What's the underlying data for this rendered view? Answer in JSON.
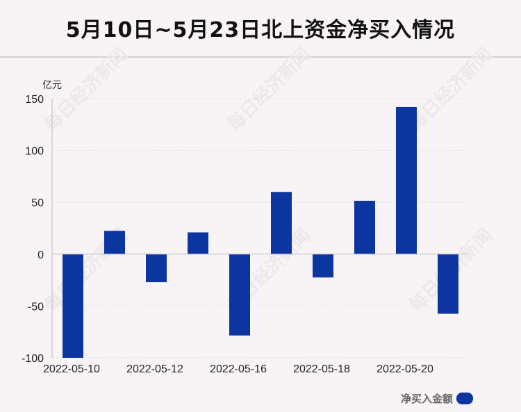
{
  "header": {
    "title": "5月10日~5月23日北上资金净买入情况"
  },
  "watermark": "每日经济新闻",
  "chart_data": {
    "type": "bar",
    "unit_label": "亿元",
    "categories": [
      "2022-05-10",
      "2022-05-11",
      "2022-05-12",
      "2022-05-13",
      "2022-05-16",
      "2022-05-17",
      "2022-05-18",
      "2022-05-19",
      "2022-05-20",
      "2022-05-23"
    ],
    "x_tick_labels": [
      "2022-05-10",
      "2022-05-12",
      "2022-05-16",
      "2022-05-18",
      "2022-05-20"
    ],
    "x_tick_indices": [
      0,
      2,
      4,
      6,
      8
    ],
    "series": [
      {
        "name": "净买入金额",
        "values": [
          -100,
          22.5,
          -27,
          21,
          -78.5,
          60,
          -22.5,
          51.5,
          142,
          -57.5
        ],
        "color": "#0d35a0"
      }
    ],
    "ylim": [
      -100,
      150
    ],
    "yticks": [
      150,
      100,
      50,
      0,
      -50,
      -100
    ],
    "grid": true,
    "legend_position": "bottom-right"
  }
}
